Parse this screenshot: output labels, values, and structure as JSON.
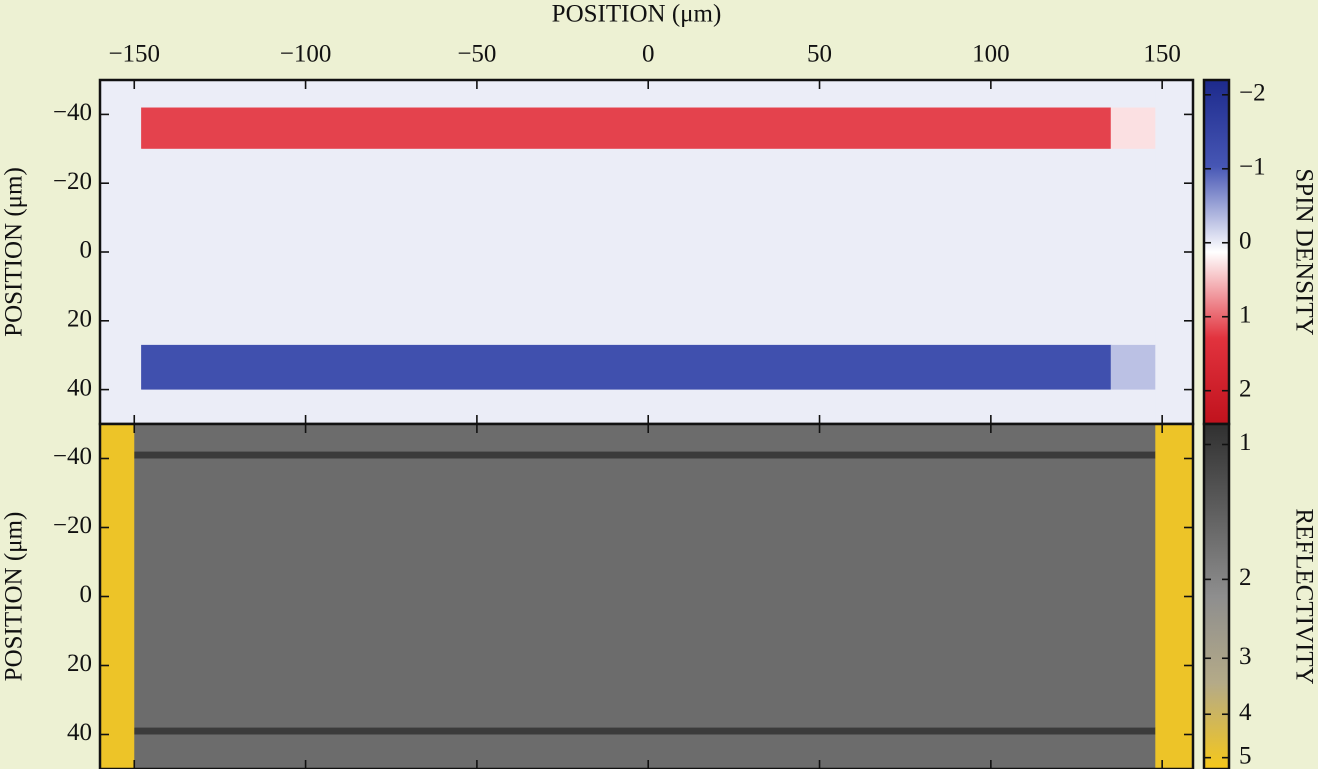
{
  "chart_data": [
    {
      "type": "heatmap",
      "x_label": "POSITION (μm)",
      "y_label": "POSITION (μm)",
      "color_label": "SPIN DENSITY",
      "xlim": [
        -160,
        159
      ],
      "ylim": [
        -50,
        50
      ],
      "yaxis_inverted": true,
      "xticks": [
        {
          "value": -150,
          "label": "−150"
        },
        {
          "value": -100,
          "label": "−100"
        },
        {
          "value": -50,
          "label": "−50"
        },
        0,
        50,
        100,
        150
      ],
      "yticks": [
        {
          "value": -40,
          "label": "−40"
        },
        {
          "value": -20,
          "label": "−20"
        },
        0,
        20,
        40
      ],
      "x_edges": [
        -160,
        -148,
        135,
        148,
        159
      ],
      "y_edges": [
        -50,
        -42,
        -30,
        27,
        40,
        50
      ],
      "z": [
        [
          0,
          0,
          0,
          0
        ],
        [
          0,
          1.2,
          0.3,
          0
        ],
        [
          0,
          0,
          0,
          0
        ],
        [
          0,
          -1.2,
          -0.3,
          0
        ],
        [
          0,
          0,
          0,
          0
        ]
      ],
      "clim": [
        -2.2,
        2.45
      ],
      "cscale": "linear",
      "cticks": [
        {
          "value": -2,
          "label": "−2"
        },
        {
          "value": -1,
          "label": "−1"
        },
        0,
        1,
        2
      ],
      "colormap": [
        "#1d2a8c",
        "#4656b4",
        "#ffffff",
        "#e2333e",
        "#c0121d"
      ]
    },
    {
      "type": "heatmap",
      "y_label": "POSITION (μm)",
      "color_label": "REFLECTIVITY",
      "xlim": [
        -160,
        159
      ],
      "ylim": [
        -50,
        50
      ],
      "yaxis_inverted": true,
      "xticks": [
        -150,
        -100,
        -50,
        0,
        50,
        100,
        150
      ],
      "yticks": [
        {
          "value": -40,
          "label": "−40"
        },
        {
          "value": -20,
          "label": "−20"
        },
        0,
        20,
        40
      ],
      "x_edges": [
        -160,
        -150,
        148,
        159
      ],
      "y_edges": [
        -50,
        -42,
        -40,
        38,
        40,
        50
      ],
      "z": [
        [
          5,
          1.6,
          5
        ],
        [
          5,
          1.0,
          5
        ],
        [
          5,
          1.6,
          5
        ],
        [
          5,
          1.0,
          5
        ],
        [
          5,
          1.6,
          5
        ]
      ],
      "clim": [
        0.9,
        5.3
      ],
      "cscale": "log",
      "cticks": [
        1,
        2,
        3,
        4,
        5
      ],
      "colormap": [
        "#303030",
        "#5e5e5e",
        "#8e8e8e",
        "#b4aa88",
        "#f6c81a"
      ]
    }
  ]
}
